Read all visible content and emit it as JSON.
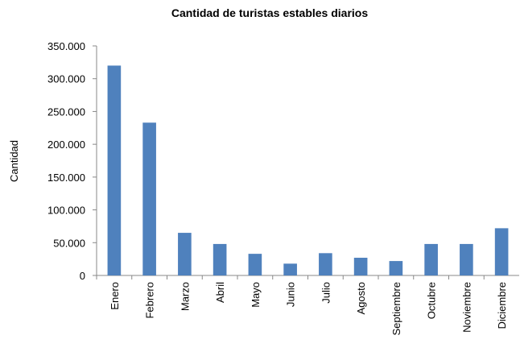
{
  "chart_data": {
    "type": "bar",
    "title": "Cantidad de turistas estables diarios",
    "y_label": "Cantidad",
    "categories": [
      "Enero",
      "Febrero",
      "Marzo",
      "Abril",
      "Mayo",
      "Junio",
      "Julio",
      "Agosto",
      "Septiembre",
      "Octubre",
      "Noviembre",
      "Diciembre"
    ],
    "values": [
      320000,
      233000,
      65000,
      48000,
      33000,
      18000,
      34000,
      27000,
      22000,
      48000,
      48000,
      72000
    ],
    "color": "#4f81bd",
    "ylim": [
      0,
      350000
    ],
    "yticks": [
      0,
      {
        "value": 50000,
        "label": "50.000"
      },
      {
        "value": 100000,
        "label": "100.000"
      },
      {
        "value": 150000,
        "label": "150.000"
      },
      {
        "value": 200000,
        "label": "200.000"
      },
      {
        "value": 250000,
        "label": "250.000"
      },
      {
        "value": 300000,
        "label": "300.000"
      },
      {
        "value": 350000,
        "label": "350.000"
      }
    ],
    "grid": false
  }
}
